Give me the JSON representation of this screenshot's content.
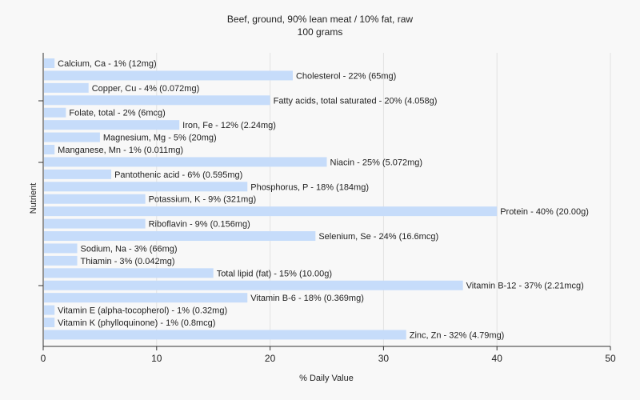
{
  "chart_data": {
    "type": "bar",
    "orientation": "horizontal",
    "title": "Beef, ground, 90% lean meat / 10% fat, raw",
    "subtitle": "100 grams",
    "xlabel": "% Daily Value",
    "ylabel": "Nutrient",
    "xlim": [
      0,
      50
    ],
    "xticks": [
      "0",
      "10",
      "20",
      "30",
      "40",
      "50"
    ],
    "grid": true,
    "bar_color": "#c6dcfa",
    "categories": [
      "Calcium, Ca",
      "Cholesterol",
      "Copper, Cu",
      "Fatty acids, total saturated",
      "Folate, total",
      "Iron, Fe",
      "Magnesium, Mg",
      "Manganese, Mn",
      "Niacin",
      "Pantothenic acid",
      "Phosphorus, P",
      "Potassium, K",
      "Protein",
      "Riboflavin",
      "Selenium, Se",
      "Sodium, Na",
      "Thiamin",
      "Total lipid (fat)",
      "Vitamin B-12",
      "Vitamin B-6",
      "Vitamin E (alpha-tocopherol)",
      "Vitamin K (phylloquinone)",
      "Zinc, Zn"
    ],
    "values": [
      1,
      22,
      4,
      20,
      2,
      12,
      5,
      1,
      25,
      6,
      18,
      9,
      40,
      9,
      24,
      3,
      3,
      15,
      37,
      18,
      1,
      1,
      32
    ],
    "labels": [
      "Calcium, Ca - 1% (12mg)",
      "Cholesterol - 22% (65mg)",
      "Copper, Cu - 4% (0.072mg)",
      "Fatty acids, total saturated - 20% (4.058g)",
      "Folate, total - 2% (6mcg)",
      "Iron, Fe - 12% (2.24mg)",
      "Magnesium, Mg - 5% (20mg)",
      "Manganese, Mn - 1% (0.011mg)",
      "Niacin - 25% (5.072mg)",
      "Pantothenic acid - 6% (0.595mg)",
      "Phosphorus, P - 18% (184mg)",
      "Potassium, K - 9% (321mg)",
      "Protein - 40% (20.00g)",
      "Riboflavin - 9% (0.156mg)",
      "Selenium, Se - 24% (16.6mcg)",
      "Sodium, Na - 3% (66mg)",
      "Thiamin - 3% (0.042mg)",
      "Total lipid (fat) - 15% (10.00g)",
      "Vitamin B-12 - 37% (2.21mcg)",
      "Vitamin B-6 - 18% (0.369mg)",
      "Vitamin E (alpha-tocopherol) - 1% (0.32mg)",
      "Vitamin K (phylloquinone) - 1% (0.8mcg)",
      "Zinc, Zn - 32% (4.79mg)"
    ]
  }
}
